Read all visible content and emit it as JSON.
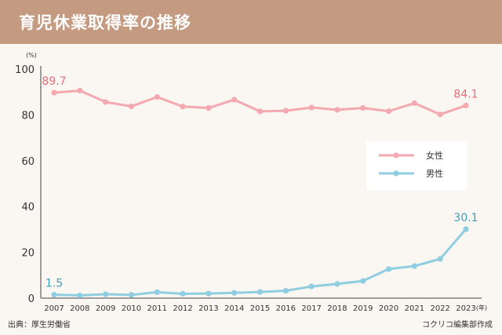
{
  "title": "育児休業取得率の推移",
  "source": "出典：厚生労働省",
  "credit": "コクリコ編集部作成",
  "colors": {
    "header_bg": "#c49a80",
    "female": "#f4a9b0",
    "male": "#8fcde0",
    "female_label": "#e46f7a",
    "male_label": "#3f9fb8"
  },
  "chart_data": {
    "type": "line",
    "y_unit": "(%)",
    "x_unit": "(年)",
    "ylim": [
      0,
      100
    ],
    "yticks": [
      0,
      20,
      40,
      60,
      80,
      100
    ],
    "grid": false,
    "legend_position": "right",
    "x": [
      "2007",
      "2008",
      "2009",
      "2010",
      "2011",
      "2012",
      "2013",
      "2014",
      "2015",
      "2016",
      "2017",
      "2018",
      "2019",
      "2020",
      "2021",
      "2022",
      "2023"
    ],
    "series": [
      {
        "name": "女性",
        "color": "#f4a9b0",
        "values": [
          89.7,
          90.6,
          85.6,
          83.7,
          87.8,
          83.6,
          83.0,
          86.6,
          81.5,
          81.8,
          83.2,
          82.2,
          83.0,
          81.6,
          85.1,
          80.2,
          84.1
        ]
      },
      {
        "name": "男性",
        "color": "#8fcde0",
        "values": [
          1.5,
          1.2,
          1.7,
          1.4,
          2.6,
          1.9,
          2.0,
          2.3,
          2.7,
          3.2,
          5.1,
          6.2,
          7.5,
          12.7,
          14.0,
          17.1,
          30.1
        ]
      }
    ],
    "annotations": [
      {
        "series": 0,
        "index": 0,
        "text": "89.7"
      },
      {
        "series": 0,
        "index": 16,
        "text": "84.1"
      },
      {
        "series": 1,
        "index": 0,
        "text": "1.5"
      },
      {
        "series": 1,
        "index": 16,
        "text": "30.1"
      }
    ]
  }
}
